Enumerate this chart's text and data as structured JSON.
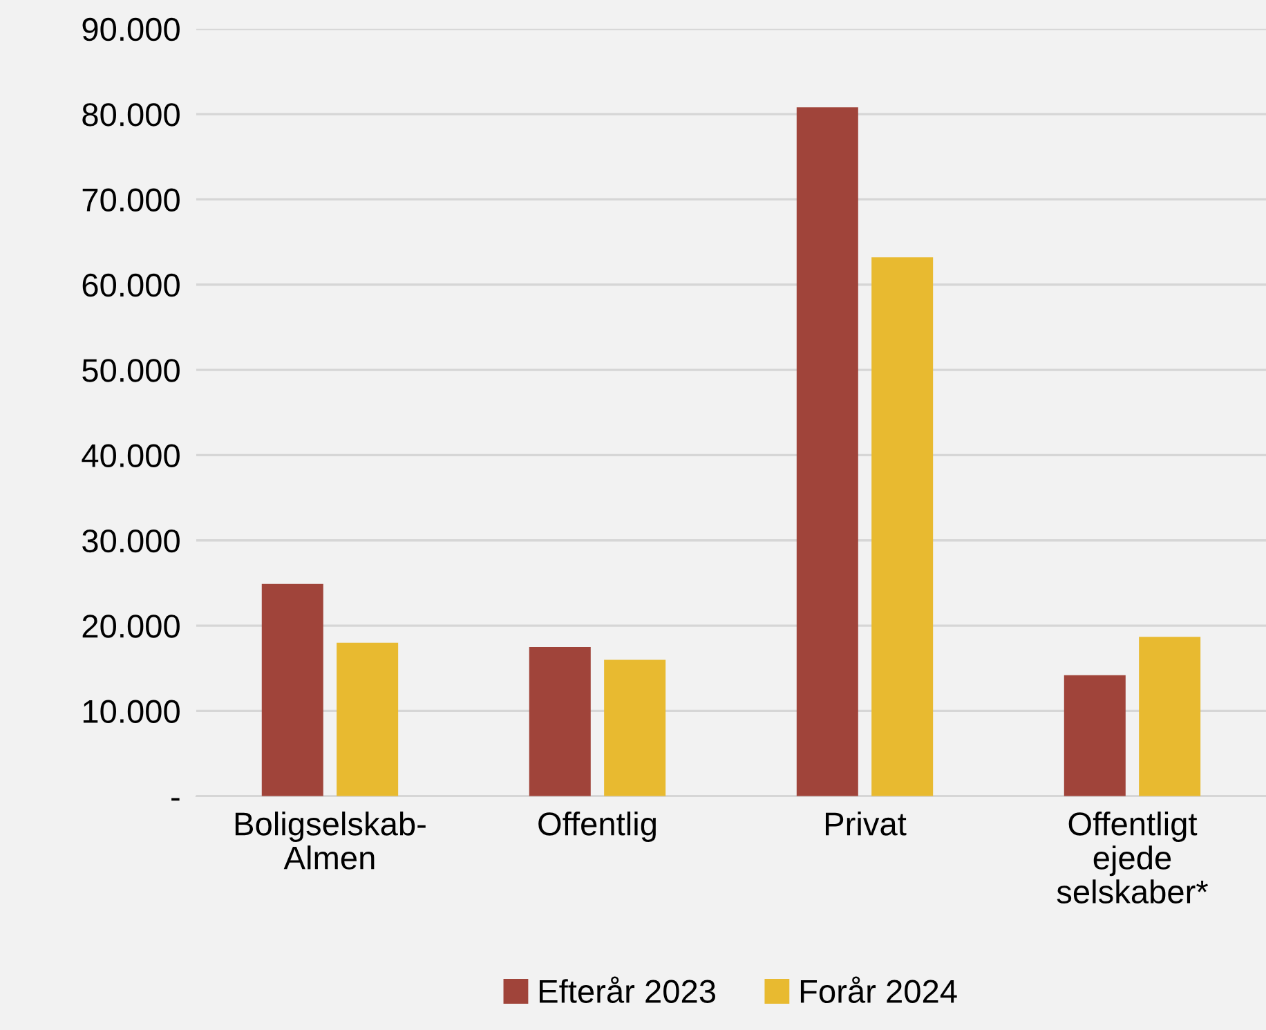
{
  "chart_data": {
    "type": "bar",
    "categories": [
      "Boligselskab-\nAlmen",
      "Offentlig",
      "Privat",
      "Offentligt\nejede\nselskaber*"
    ],
    "series": [
      {
        "name": "Efterår 2023",
        "color": "#a0443a",
        "values": [
          24900,
          17500,
          80800,
          14200
        ]
      },
      {
        "name": "Forår 2024",
        "color": "#e8ba30",
        "values": [
          18000,
          16000,
          63200,
          18700
        ]
      }
    ],
    "ylim": [
      0,
      90000
    ],
    "yticks": [
      {
        "value": 0,
        "label": "-"
      },
      {
        "value": 10000,
        "label": "10.000"
      },
      {
        "value": 20000,
        "label": "20.000"
      },
      {
        "value": 30000,
        "label": "30.000"
      },
      {
        "value": 40000,
        "label": "40.000"
      },
      {
        "value": 50000,
        "label": "50.000"
      },
      {
        "value": 60000,
        "label": "60.000"
      },
      {
        "value": 70000,
        "label": "70.000"
      },
      {
        "value": 80000,
        "label": "80.000"
      },
      {
        "value": 90000,
        "label": "90.000"
      }
    ],
    "grid": "y",
    "legend": "bottom"
  }
}
